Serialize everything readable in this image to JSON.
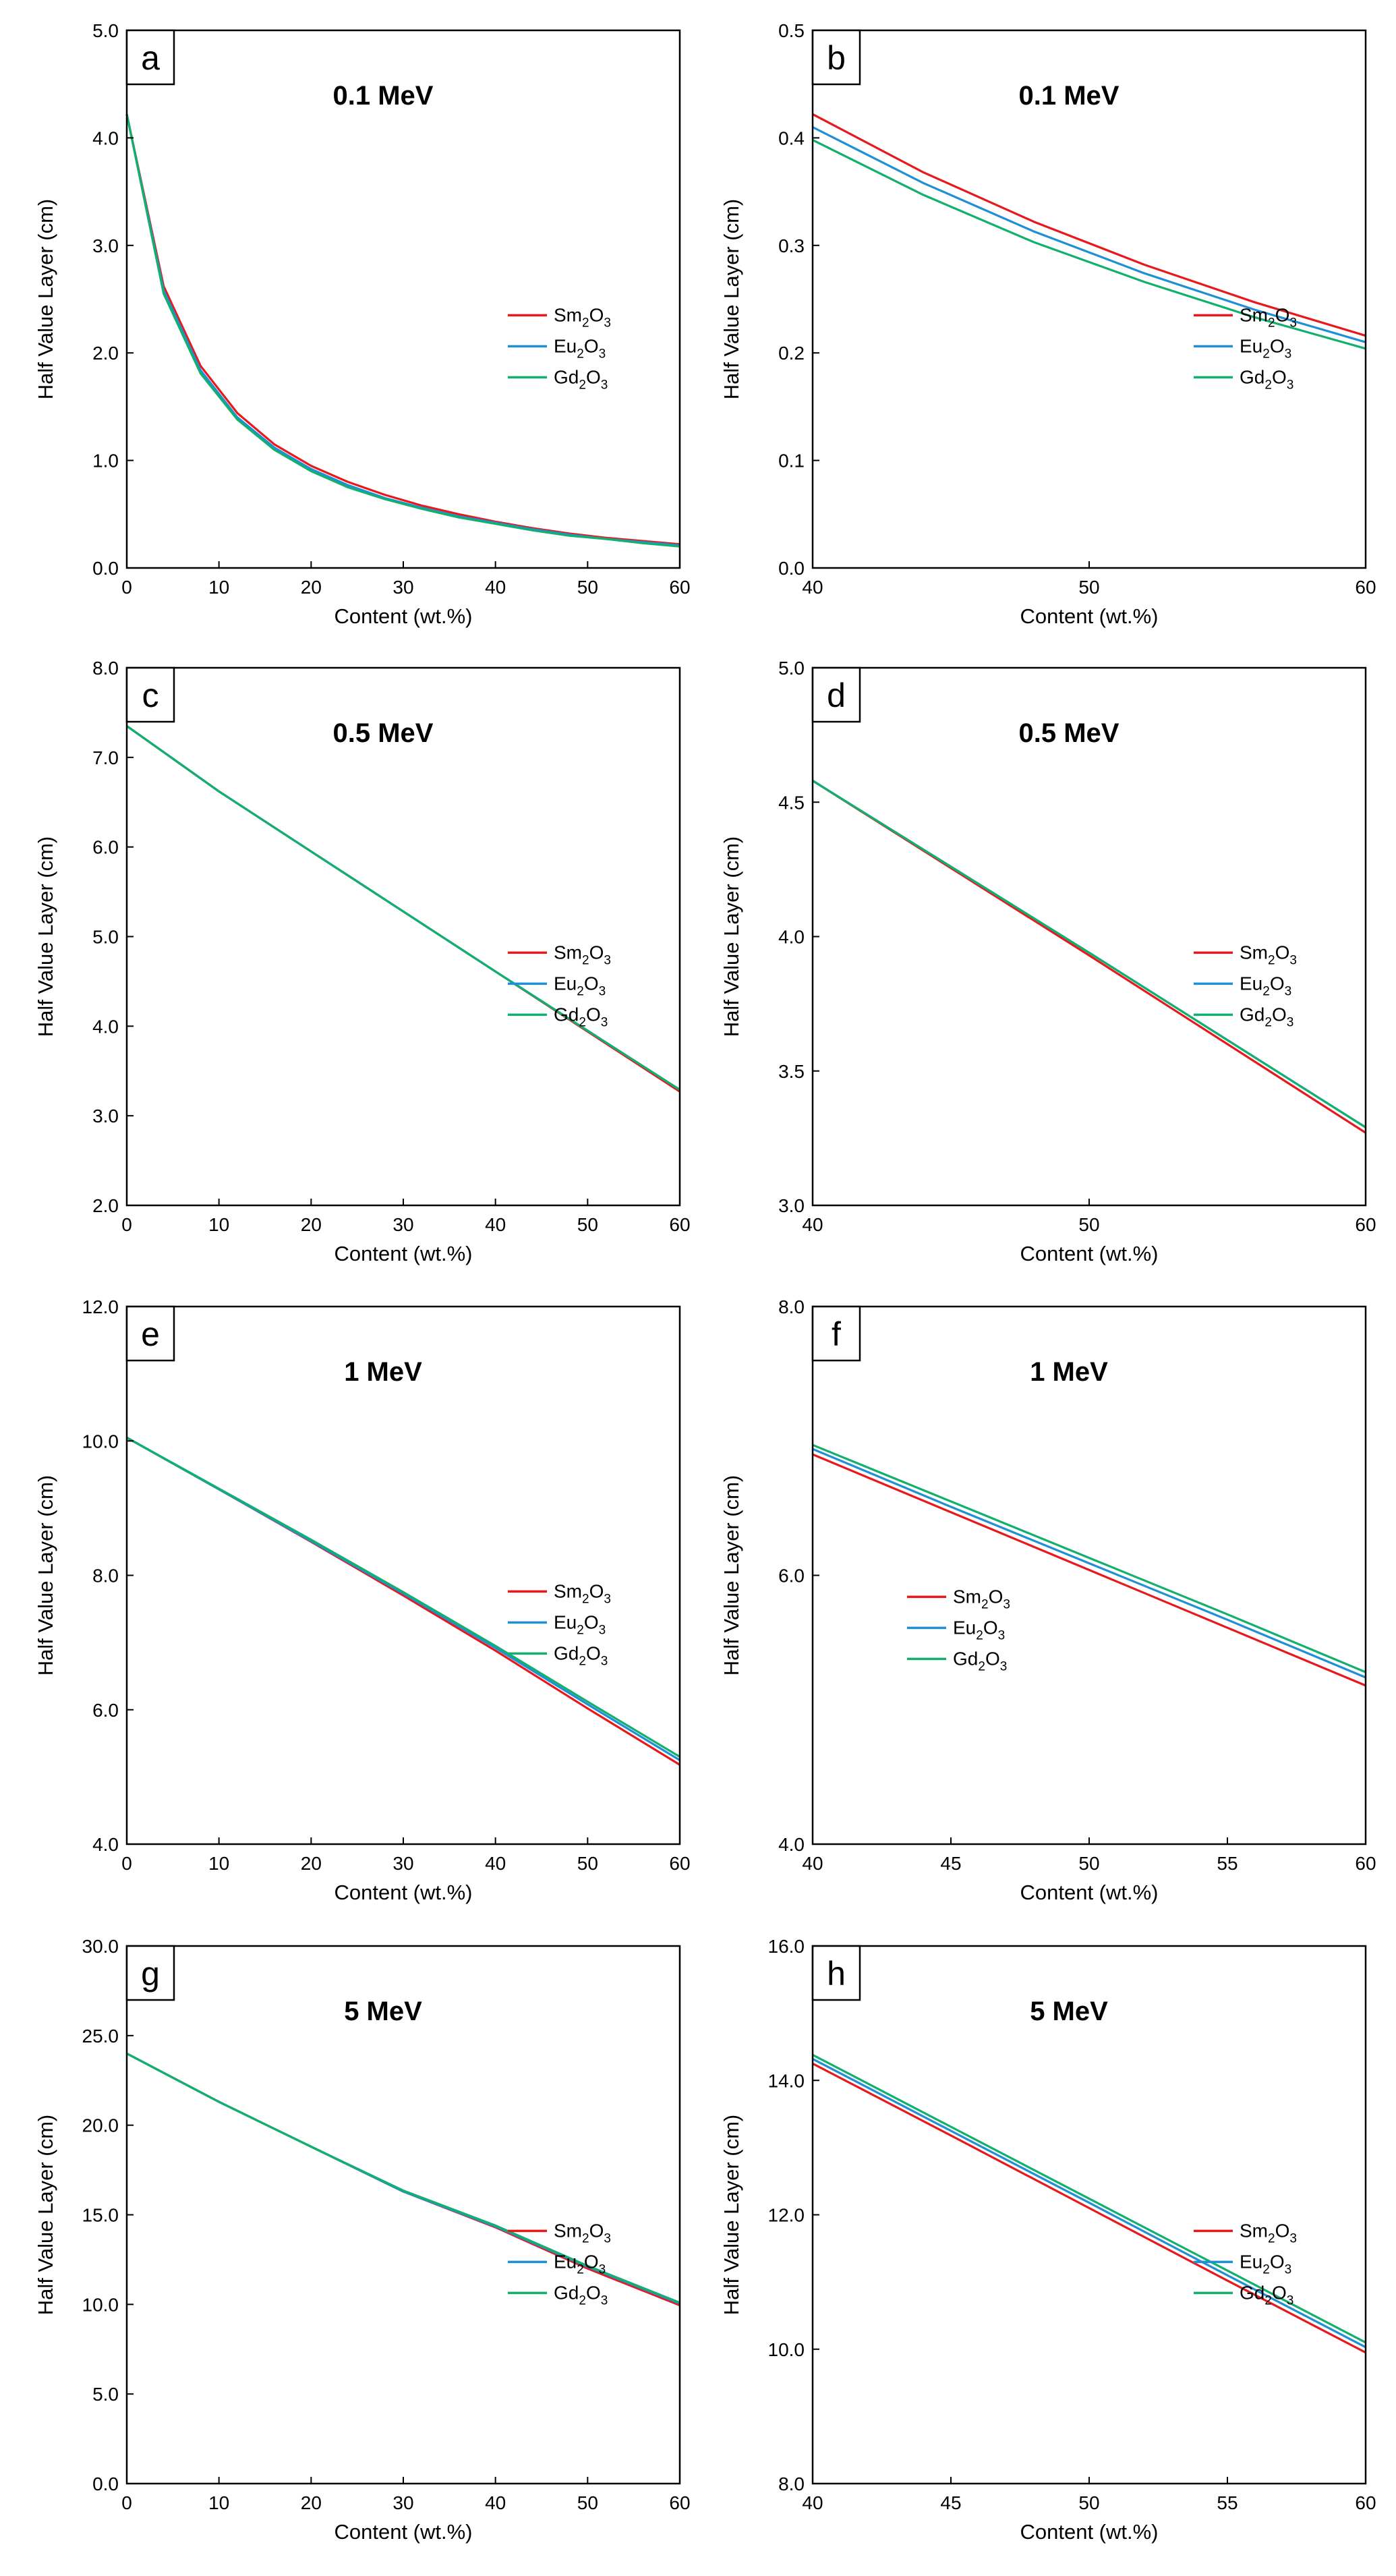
{
  "figure": {
    "legend_sub_2": "2",
    "legend_sub_3": "3"
  },
  "colors": {
    "Sm2O3": "#e8191c",
    "Eu2O3": "#1f8fd6",
    "Gd2O3": "#12b06e",
    "axis": "#000000"
  },
  "chart_data": [
    {
      "panel": "a",
      "type": "line",
      "title": "0.1 MeV",
      "xlabel": "Content (wt.%)",
      "ylabel": "Half Value Layer (cm)",
      "xlim": [
        0,
        60
      ],
      "ylim": [
        0,
        5
      ],
      "xticks": [
        0,
        10,
        20,
        30,
        40,
        50,
        60
      ],
      "xtick_labels": [
        "0",
        "10",
        "20",
        "30",
        "40",
        "50",
        "60"
      ],
      "yticks": [
        0,
        1,
        2,
        3,
        4,
        5
      ],
      "ytick_labels": [
        "0.0",
        "1.0",
        "2.0",
        "3.0",
        "4.0",
        "5.0"
      ],
      "legend_position": "right-middle",
      "x": [
        0,
        4,
        8,
        12,
        16,
        20,
        24,
        28,
        32,
        36,
        40,
        44,
        48,
        52,
        56,
        60
      ],
      "series": [
        {
          "key": "Sm2O3",
          "base": "Sm",
          "values": [
            4.22,
            2.62,
            1.88,
            1.44,
            1.15,
            0.95,
            0.8,
            0.68,
            0.58,
            0.5,
            0.43,
            0.37,
            0.32,
            0.28,
            0.25,
            0.22
          ]
        },
        {
          "key": "Eu2O3",
          "base": "Eu",
          "values": [
            4.22,
            2.58,
            1.84,
            1.4,
            1.12,
            0.92,
            0.77,
            0.65,
            0.56,
            0.48,
            0.42,
            0.36,
            0.31,
            0.27,
            0.24,
            0.21
          ]
        },
        {
          "key": "Gd2O3",
          "base": "Gd",
          "values": [
            4.22,
            2.55,
            1.81,
            1.38,
            1.1,
            0.9,
            0.75,
            0.64,
            0.55,
            0.47,
            0.41,
            0.35,
            0.3,
            0.27,
            0.23,
            0.2
          ]
        }
      ]
    },
    {
      "panel": "b",
      "type": "line",
      "title": "0.1 MeV",
      "xlabel": "Content (wt.%)",
      "ylabel": "Half Value Layer (cm)",
      "xlim": [
        40,
        60
      ],
      "ylim": [
        0,
        0.5
      ],
      "xticks": [
        40,
        50,
        60
      ],
      "xtick_labels": [
        "40",
        "50",
        "60"
      ],
      "yticks": [
        0,
        0.1,
        0.2,
        0.3,
        0.4,
        0.5
      ],
      "ytick_labels": [
        "0.0",
        "0.1",
        "0.2",
        "0.3",
        "0.4",
        "0.5"
      ],
      "legend_position": "right-middle",
      "x": [
        40,
        44,
        48,
        52,
        56,
        60
      ],
      "series": [
        {
          "key": "Sm2O3",
          "base": "Sm",
          "values": [
            0.422,
            0.368,
            0.322,
            0.282,
            0.247,
            0.216
          ]
        },
        {
          "key": "Eu2O3",
          "base": "Eu",
          "values": [
            0.41,
            0.358,
            0.313,
            0.274,
            0.24,
            0.21
          ]
        },
        {
          "key": "Gd2O3",
          "base": "Gd",
          "values": [
            0.398,
            0.347,
            0.303,
            0.266,
            0.233,
            0.204
          ]
        }
      ]
    },
    {
      "panel": "c",
      "type": "line",
      "title": "0.5 MeV",
      "xlabel": "Content (wt.%)",
      "ylabel": "Half Value Layer (cm)",
      "xlim": [
        0,
        60
      ],
      "ylim": [
        2,
        8
      ],
      "xticks": [
        0,
        10,
        20,
        30,
        40,
        50,
        60
      ],
      "xtick_labels": [
        "0",
        "10",
        "20",
        "30",
        "40",
        "50",
        "60"
      ],
      "yticks": [
        2,
        3,
        4,
        5,
        6,
        7,
        8
      ],
      "ytick_labels": [
        "2.0",
        "3.0",
        "4.0",
        "5.0",
        "6.0",
        "7.0",
        "8.0"
      ],
      "legend_position": "right-middle",
      "x": [
        0,
        10,
        20,
        30,
        40,
        50,
        60
      ],
      "series": [
        {
          "key": "Sm2O3",
          "base": "Sm",
          "values": [
            7.35,
            6.62,
            5.95,
            5.28,
            4.61,
            3.94,
            3.27
          ]
        },
        {
          "key": "Eu2O3",
          "base": "Eu",
          "values": [
            7.35,
            6.62,
            5.95,
            5.28,
            4.61,
            3.95,
            3.29
          ]
        },
        {
          "key": "Gd2O3",
          "base": "Gd",
          "values": [
            7.35,
            6.62,
            5.95,
            5.28,
            4.61,
            3.95,
            3.29
          ]
        }
      ]
    },
    {
      "panel": "d",
      "type": "line",
      "title": "0.5 MeV",
      "xlabel": "Content (wt.%)",
      "ylabel": "Half Value Layer (cm)",
      "xlim": [
        40,
        60
      ],
      "ylim": [
        3,
        5
      ],
      "xticks": [
        40,
        50,
        60
      ],
      "xtick_labels": [
        "40",
        "50",
        "60"
      ],
      "yticks": [
        3,
        3.5,
        4,
        4.5,
        5
      ],
      "ytick_labels": [
        "3.0",
        "3.5",
        "4.0",
        "4.5",
        "5.0"
      ],
      "legend_position": "right-middle",
      "x": [
        40,
        50,
        60
      ],
      "series": [
        {
          "key": "Sm2O3",
          "base": "Sm",
          "values": [
            4.58,
            3.93,
            3.27
          ]
        },
        {
          "key": "Eu2O3",
          "base": "Eu",
          "values": [
            4.58,
            3.94,
            3.29
          ]
        },
        {
          "key": "Gd2O3",
          "base": "Gd",
          "values": [
            4.58,
            3.94,
            3.29
          ]
        }
      ]
    },
    {
      "panel": "e",
      "type": "line",
      "title": "1 MeV",
      "xlabel": "Content (wt.%)",
      "ylabel": "Half Value Layer (cm)",
      "xlim": [
        0,
        60
      ],
      "ylim": [
        4,
        12
      ],
      "xticks": [
        0,
        10,
        20,
        30,
        40,
        50,
        60
      ],
      "xtick_labels": [
        "0",
        "10",
        "20",
        "30",
        "40",
        "50",
        "60"
      ],
      "yticks": [
        4,
        6,
        8,
        10,
        12
      ],
      "ytick_labels": [
        "4.0",
        "6.0",
        "8.0",
        "10.0",
        "12.0"
      ],
      "legend_position": "right-middle",
      "x": [
        0,
        10,
        20,
        30,
        40,
        50,
        60
      ],
      "series": [
        {
          "key": "Sm2O3",
          "base": "Sm",
          "values": [
            10.05,
            9.28,
            8.5,
            7.7,
            6.88,
            6.02,
            5.18
          ]
        },
        {
          "key": "Eu2O3",
          "base": "Eu",
          "values": [
            10.05,
            9.28,
            8.51,
            7.73,
            6.92,
            6.08,
            5.25
          ]
        },
        {
          "key": "Gd2O3",
          "base": "Gd",
          "values": [
            10.05,
            9.29,
            8.53,
            7.75,
            6.95,
            6.12,
            5.3
          ]
        }
      ]
    },
    {
      "panel": "f",
      "type": "line",
      "title": "1 MeV",
      "xlabel": "Content (wt.%)",
      "ylabel": "Half Value Layer (cm)",
      "xlim": [
        40,
        60
      ],
      "ylim": [
        4,
        8
      ],
      "xticks": [
        40,
        45,
        50,
        55,
        60
      ],
      "xtick_labels": [
        "40",
        "45",
        "50",
        "55",
        "60"
      ],
      "yticks": [
        4,
        6,
        8
      ],
      "ytick_labels": [
        "4.0",
        "6.0",
        "8.0"
      ],
      "legend_position": "left-middle",
      "x": [
        40,
        45,
        50,
        55,
        60
      ],
      "series": [
        {
          "key": "Sm2O3",
          "base": "Sm",
          "values": [
            6.9,
            6.47,
            6.04,
            5.61,
            5.18
          ]
        },
        {
          "key": "Eu2O3",
          "base": "Eu",
          "values": [
            6.94,
            6.51,
            6.09,
            5.67,
            5.24
          ]
        },
        {
          "key": "Gd2O3",
          "base": "Gd",
          "values": [
            6.97,
            6.55,
            6.13,
            5.71,
            5.28
          ]
        }
      ]
    },
    {
      "panel": "g",
      "type": "line",
      "title": "5 MeV",
      "xlabel": "Content (wt.%)",
      "ylabel": "Half Value Layer (cm)",
      "xlim": [
        0,
        60
      ],
      "ylim": [
        0,
        30
      ],
      "xticks": [
        0,
        10,
        20,
        30,
        40,
        50,
        60
      ],
      "xtick_labels": [
        "0",
        "10",
        "20",
        "30",
        "40",
        "50",
        "60"
      ],
      "yticks": [
        0,
        5,
        10,
        15,
        20,
        25,
        30
      ],
      "ytick_labels": [
        "0.0",
        "5.0",
        "10.0",
        "15.0",
        "20.0",
        "25.0",
        "30.0"
      ],
      "legend_position": "right-middle",
      "x": [
        0,
        10,
        20,
        30,
        40,
        50,
        60
      ],
      "series": [
        {
          "key": "Sm2O3",
          "base": "Sm",
          "values": [
            24.0,
            21.3,
            18.8,
            16.3,
            14.3,
            12.0,
            9.95
          ]
        },
        {
          "key": "Eu2O3",
          "base": "Eu",
          "values": [
            24.0,
            21.3,
            18.8,
            16.3,
            14.35,
            12.1,
            10.05
          ]
        },
        {
          "key": "Gd2O3",
          "base": "Gd",
          "values": [
            24.0,
            21.3,
            18.8,
            16.35,
            14.4,
            12.15,
            10.1
          ]
        }
      ]
    },
    {
      "panel": "h",
      "type": "line",
      "title": "5 MeV",
      "xlabel": "Content (wt.%)",
      "ylabel": "Half Value Layer (cm)",
      "xlim": [
        40,
        60
      ],
      "ylim": [
        8,
        16
      ],
      "xticks": [
        40,
        45,
        50,
        55,
        60
      ],
      "xtick_labels": [
        "40",
        "45",
        "50",
        "55",
        "60"
      ],
      "yticks": [
        8,
        10,
        12,
        14,
        16
      ],
      "ytick_labels": [
        "8.0",
        "10.0",
        "12.0",
        "14.0",
        "16.0"
      ],
      "legend_position": "right-middle",
      "x": [
        40,
        45,
        50,
        55,
        60
      ],
      "series": [
        {
          "key": "Sm2O3",
          "base": "Sm",
          "values": [
            14.25,
            13.18,
            12.1,
            11.02,
            9.95
          ]
        },
        {
          "key": "Eu2O3",
          "base": "Eu",
          "values": [
            14.32,
            13.25,
            12.18,
            11.1,
            10.03
          ]
        },
        {
          "key": "Gd2O3",
          "base": "Gd",
          "values": [
            14.38,
            13.31,
            12.24,
            11.17,
            10.1
          ]
        }
      ]
    }
  ]
}
